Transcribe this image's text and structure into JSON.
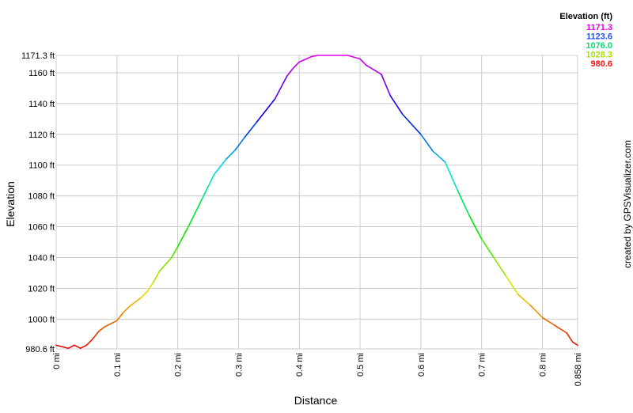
{
  "chart_data": {
    "type": "line",
    "xlabel": "Distance",
    "ylabel": "Elevation",
    "credit": "created by GPSVisualizer.com",
    "xlim": [
      0,
      0.858
    ],
    "ylim": [
      980.6,
      1171.3
    ],
    "grid": true,
    "x_ticks": [
      "0 mi",
      "0.1 mi",
      "0.2 mi",
      "0.3 mi",
      "0.4 mi",
      "0.5 mi",
      "0.6 mi",
      "0.7 mi",
      "0.8 mi",
      "0.858 mi"
    ],
    "x_tick_values": [
      0,
      0.1,
      0.2,
      0.3,
      0.4,
      0.5,
      0.6,
      0.7,
      0.8,
      0.858
    ],
    "y_ticks": [
      "980.6 ft",
      "1000 ft",
      "1020 ft",
      "1040 ft",
      "1060 ft",
      "1080 ft",
      "1100 ft",
      "1120 ft",
      "1140 ft",
      "1160 ft",
      "1171.3 ft"
    ],
    "y_tick_values": [
      980.6,
      1000,
      1020,
      1040,
      1060,
      1080,
      1100,
      1120,
      1140,
      1160,
      1171.3
    ],
    "legend": {
      "title": "Elevation (ft)",
      "placement": "top-right",
      "entries": [
        {
          "label": "1171.3",
          "color": "#e600e6"
        },
        {
          "label": "1123.6",
          "color": "#1e50ff"
        },
        {
          "label": "1076.0",
          "color": "#00e070"
        },
        {
          "label": "1028.3",
          "color": "#a8e000"
        },
        {
          "label": "980.6",
          "color": "#ff1010"
        }
      ]
    },
    "x": [
      0,
      0.01,
      0.02,
      0.03,
      0.04,
      0.05,
      0.06,
      0.07,
      0.08,
      0.1,
      0.11,
      0.12,
      0.14,
      0.15,
      0.16,
      0.17,
      0.19,
      0.2,
      0.22,
      0.24,
      0.25,
      0.26,
      0.28,
      0.295,
      0.31,
      0.33,
      0.36,
      0.38,
      0.39,
      0.4,
      0.42,
      0.43,
      0.48,
      0.5,
      0.51,
      0.535,
      0.55,
      0.57,
      0.6,
      0.62,
      0.64,
      0.66,
      0.68,
      0.7,
      0.72,
      0.74,
      0.76,
      0.78,
      0.8,
      0.82,
      0.84,
      0.85,
      0.858
    ],
    "y": [
      983,
      982,
      981,
      983,
      981,
      983,
      987,
      992,
      995,
      999,
      1004,
      1008,
      1014,
      1018,
      1024,
      1031,
      1040,
      1047,
      1062,
      1078,
      1086,
      1094,
      1104,
      1110,
      1118,
      1128,
      1143,
      1158,
      1163,
      1167,
      1170.5,
      1171.3,
      1171.3,
      1169,
      1165,
      1159,
      1145,
      1133,
      1120,
      1109,
      1102,
      1084,
      1067,
      1052,
      1040,
      1028,
      1016,
      1009,
      1001,
      996,
      991,
      985,
      983
    ]
  }
}
